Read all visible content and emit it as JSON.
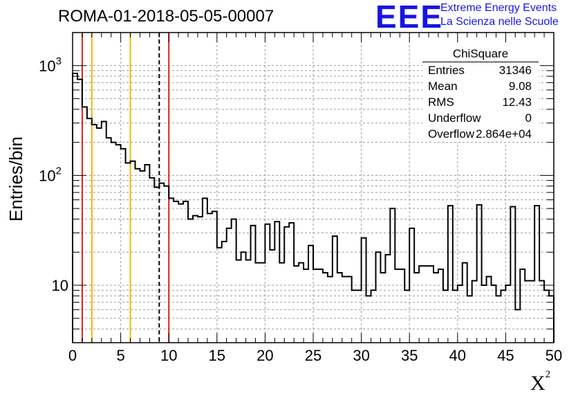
{
  "header": {
    "title": "ROMA-01-2018-05-05-00007",
    "logo_mark": "EEE",
    "logo_line1": "Extreme Energy Events",
    "logo_line2": "La Scienza nelle Scuole"
  },
  "stats_box": {
    "title": "ChiSquare",
    "rows": [
      {
        "label": "Entries",
        "value": "31346"
      },
      {
        "label": "Mean",
        "value": "9.08"
      },
      {
        "label": "RMS",
        "value": "12.43"
      },
      {
        "label": "Underflow",
        "value": "0"
      },
      {
        "label": "Overflow",
        "value": "2.864e+04"
      }
    ]
  },
  "colors": {
    "red_line": "#e0201a",
    "yellow_line": "#f0b800",
    "grid": "#9a9a9a",
    "histogram": "#000000",
    "logo": "#1515e6"
  },
  "chart_data": {
    "type": "histogram",
    "title": "ROMA-01-2018-05-05-00007",
    "xlabel": "X",
    "xlabel_superscript": "2",
    "ylabel": "Entries/bin",
    "xlim": [
      0,
      50
    ],
    "ylim": [
      3,
      2000
    ],
    "y_scale": "log",
    "grid": true,
    "bin_width": 0.5,
    "x_ticks": [
      "0",
      "5",
      "10",
      "15",
      "20",
      "25",
      "30",
      "35",
      "40",
      "45",
      "50"
    ],
    "y_tick_labels": [
      {
        "value": 10,
        "base": "10",
        "exp": ""
      },
      {
        "value": 100,
        "base": "10",
        "exp": "2"
      },
      {
        "value": 1000,
        "base": "10",
        "exp": "3"
      }
    ],
    "counts": [
      850,
      750,
      420,
      330,
      290,
      270,
      310,
      220,
      200,
      190,
      175,
      130,
      135,
      115,
      110,
      125,
      95,
      78,
      85,
      80,
      62,
      58,
      55,
      58,
      40,
      43,
      42,
      62,
      45,
      47,
      22,
      25,
      33,
      40,
      17,
      20,
      17,
      35,
      16,
      16,
      36,
      21,
      38,
      16,
      34,
      37,
      15,
      16,
      14,
      23,
      14,
      14,
      13,
      12,
      28,
      13,
      12,
      12,
      9,
      9,
      27,
      8,
      9,
      20,
      13,
      19,
      50,
      14,
      14,
      9,
      33,
      13,
      15,
      15,
      15,
      13,
      14,
      9,
      53,
      9,
      10,
      16,
      8,
      11,
      54,
      10,
      12,
      10,
      8,
      9,
      10,
      52,
      6,
      14,
      11,
      11,
      53,
      11,
      9,
      8
    ],
    "vertical_lines": [
      {
        "x": 1,
        "color": "red",
        "style": "solid"
      },
      {
        "x": 2,
        "color": "yellow",
        "style": "solid"
      },
      {
        "x": 6,
        "color": "yellow",
        "style": "solid"
      },
      {
        "x": 9,
        "color": "black",
        "style": "dashed"
      },
      {
        "x": 10,
        "color": "red",
        "style": "solid"
      }
    ]
  }
}
